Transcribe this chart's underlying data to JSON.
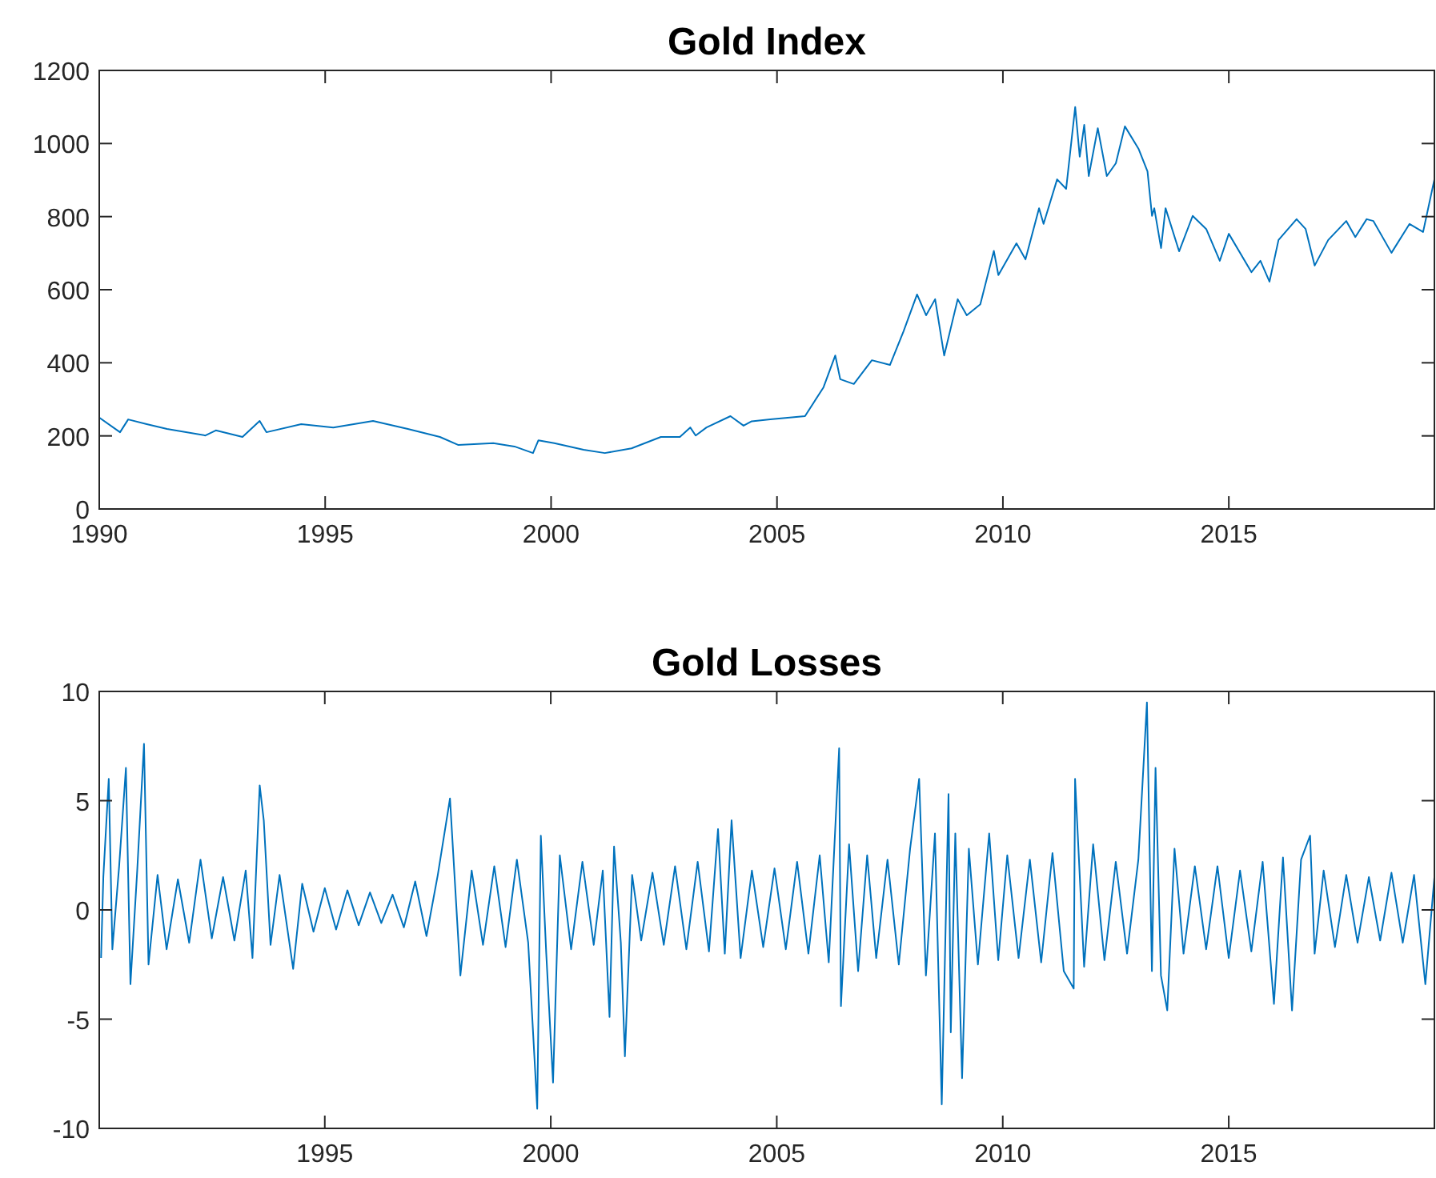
{
  "chart_data": [
    {
      "type": "line",
      "title": "Gold Index",
      "xlim": [
        1990,
        2019.55
      ],
      "xticks": [
        1990,
        1995,
        2000,
        2005,
        2010,
        2015
      ],
      "ylim": [
        0,
        1200
      ],
      "yticks": [
        0,
        200,
        400,
        600,
        800,
        1000,
        1200
      ],
      "grid": false,
      "series": [
        {
          "color": "#0072bd",
          "x": [
            1990.0,
            1990.46,
            1990.64,
            1991.05,
            1991.5,
            1992.35,
            1992.58,
            1993.17,
            1993.55,
            1993.7,
            1994.47,
            1995.18,
            1996.06,
            1996.83,
            1997.54,
            1997.95,
            1998.72,
            1999.19,
            1999.6,
            1999.72,
            2000.07,
            2000.72,
            2001.19,
            2001.78,
            2002.43,
            2002.85,
            2003.08,
            2003.2,
            2003.44,
            2003.97,
            2004.26,
            2004.44,
            2004.85,
            2005.62,
            2006.03,
            2006.29,
            2006.4,
            2006.7,
            2007.1,
            2007.5,
            2007.8,
            2008.1,
            2008.3,
            2008.5,
            2008.7,
            2009.0,
            2009.2,
            2009.5,
            2009.8,
            2009.9,
            2010.3,
            2010.5,
            2010.8,
            2010.9,
            2011.2,
            2011.4,
            2011.6,
            2011.7,
            2011.8,
            2011.9,
            2012.1,
            2012.3,
            2012.5,
            2012.7,
            2013.0,
            2013.2,
            2013.3,
            2013.35,
            2013.5,
            2013.6,
            2013.9,
            2014.2,
            2014.5,
            2014.8,
            2015.0,
            2015.5,
            2015.7,
            2015.9,
            2016.1,
            2016.5,
            2016.7,
            2016.9,
            2017.2,
            2017.6,
            2017.8,
            2018.05,
            2018.2,
            2018.6,
            2019.0,
            2019.3,
            2019.55
          ],
          "values": [
            250,
            210,
            245,
            232,
            219,
            201,
            215,
            197,
            241,
            210,
            232,
            223,
            241,
            219,
            197,
            175,
            180,
            171,
            153,
            188,
            180,
            162,
            153,
            166,
            197,
            197,
            223,
            201,
            223,
            254,
            228,
            240,
            245,
            254,
            333,
            420,
            355,
            342,
            407,
            394,
            486,
            587,
            530,
            574,
            420,
            574,
            530,
            560,
            706,
            640,
            727,
            683,
            823,
            780,
            902,
            876,
            1100,
            964,
            1051,
            911,
            1042,
            911,
            946,
            1047,
            986,
            924,
            802,
            823,
            714,
            823,
            705,
            802,
            766,
            679,
            753,
            648,
            679,
            622,
            736,
            793,
            766,
            666,
            736,
            788,
            744,
            793,
            788,
            701,
            780,
            758,
            902
          ]
        }
      ]
    },
    {
      "type": "line",
      "title": "Gold Losses",
      "xlim": [
        1990.01,
        2019.55
      ],
      "xticks": [
        1995,
        2000,
        2005,
        2010,
        2015
      ],
      "ylim": [
        -10,
        10
      ],
      "yticks": [
        -10,
        -5,
        0,
        5,
        10
      ],
      "grid": false,
      "series": [
        {
          "color": "#0072bd",
          "x": [
            1990.05,
            1990.1,
            1990.22,
            1990.3,
            1990.45,
            1990.6,
            1990.7,
            1990.85,
            1991.0,
            1991.1,
            1991.3,
            1991.5,
            1991.75,
            1992.0,
            1992.25,
            1992.5,
            1992.75,
            1993.0,
            1993.25,
            1993.4,
            1993.56,
            1993.65,
            1993.8,
            1994.0,
            1994.3,
            1994.5,
            1994.75,
            1995.0,
            1995.25,
            1995.5,
            1995.75,
            1996.0,
            1996.25,
            1996.5,
            1996.75,
            1997.0,
            1997.25,
            1997.5,
            1997.77,
            1998.0,
            1998.25,
            1998.5,
            1998.75,
            1999.0,
            1999.25,
            1999.5,
            1999.7,
            1999.78,
            1999.9,
            2000.05,
            2000.2,
            2000.45,
            2000.7,
            2000.95,
            2001.15,
            2001.3,
            2001.4,
            2001.55,
            2001.64,
            2001.8,
            2002.0,
            2002.25,
            2002.5,
            2002.75,
            2003.0,
            2003.25,
            2003.5,
            2003.7,
            2003.85,
            2004.0,
            2004.2,
            2004.45,
            2004.7,
            2004.95,
            2005.2,
            2005.45,
            2005.7,
            2005.95,
            2006.15,
            2006.38,
            2006.42,
            2006.6,
            2006.8,
            2007.0,
            2007.2,
            2007.45,
            2007.7,
            2007.95,
            2008.15,
            2008.3,
            2008.5,
            2008.65,
            2008.8,
            2008.85,
            2008.95,
            2009.1,
            2009.25,
            2009.45,
            2009.7,
            2009.9,
            2010.1,
            2010.35,
            2010.6,
            2010.85,
            2011.1,
            2011.35,
            2011.57,
            2011.6,
            2011.8,
            2012.0,
            2012.25,
            2012.5,
            2012.75,
            2013.0,
            2013.19,
            2013.3,
            2013.38,
            2013.5,
            2013.64,
            2013.8,
            2014.0,
            2014.25,
            2014.5,
            2014.75,
            2015.0,
            2015.25,
            2015.5,
            2015.75,
            2016.0,
            2016.2,
            2016.4,
            2016.6,
            2016.8,
            2016.9,
            2017.1,
            2017.35,
            2017.6,
            2017.85,
            2018.1,
            2018.35,
            2018.6,
            2018.85,
            2019.1,
            2019.35,
            2019.55
          ],
          "values": [
            -2.2,
            1.5,
            6.0,
            -1.8,
            2.0,
            6.5,
            -3.4,
            1.8,
            7.6,
            -2.5,
            1.6,
            -1.8,
            1.4,
            -1.5,
            2.3,
            -1.3,
            1.5,
            -1.4,
            1.8,
            -2.2,
            5.7,
            4.1,
            -1.6,
            1.6,
            -2.7,
            1.2,
            -1.0,
            1.0,
            -0.9,
            0.9,
            -0.7,
            0.8,
            -0.6,
            0.7,
            -0.8,
            1.3,
            -1.2,
            1.6,
            5.1,
            -3.0,
            1.8,
            -1.6,
            2.0,
            -1.7,
            2.3,
            -1.5,
            -9.1,
            3.4,
            -2.0,
            -7.9,
            2.5,
            -1.8,
            2.2,
            -1.6,
            1.8,
            -4.9,
            2.9,
            -1.5,
            -6.7,
            1.6,
            -1.4,
            1.7,
            -1.6,
            2.0,
            -1.8,
            2.2,
            -1.9,
            3.7,
            -2.0,
            4.1,
            -2.2,
            1.8,
            -1.7,
            1.9,
            -1.8,
            2.2,
            -2.0,
            2.5,
            -2.4,
            7.4,
            -4.4,
            3.0,
            -2.8,
            2.5,
            -2.2,
            2.3,
            -2.5,
            2.8,
            6.0,
            -3.0,
            3.5,
            -8.9,
            5.3,
            -5.6,
            3.5,
            -7.7,
            2.8,
            -2.5,
            3.5,
            -2.3,
            2.5,
            -2.2,
            2.3,
            -2.4,
            2.6,
            -2.8,
            -3.6,
            6.0,
            -2.6,
            3.0,
            -2.3,
            2.2,
            -2.0,
            2.3,
            9.5,
            -2.8,
            6.5,
            -3.0,
            -4.6,
            2.8,
            -2.0,
            2.0,
            -1.8,
            2.0,
            -2.2,
            1.8,
            -1.9,
            2.2,
            -4.3,
            2.4,
            -4.6,
            2.3,
            3.4,
            -2.0,
            1.8,
            -1.7,
            1.6,
            -1.5,
            1.5,
            -1.4,
            1.7,
            -1.5,
            1.6,
            -3.4,
            1.5
          ]
        }
      ]
    }
  ]
}
